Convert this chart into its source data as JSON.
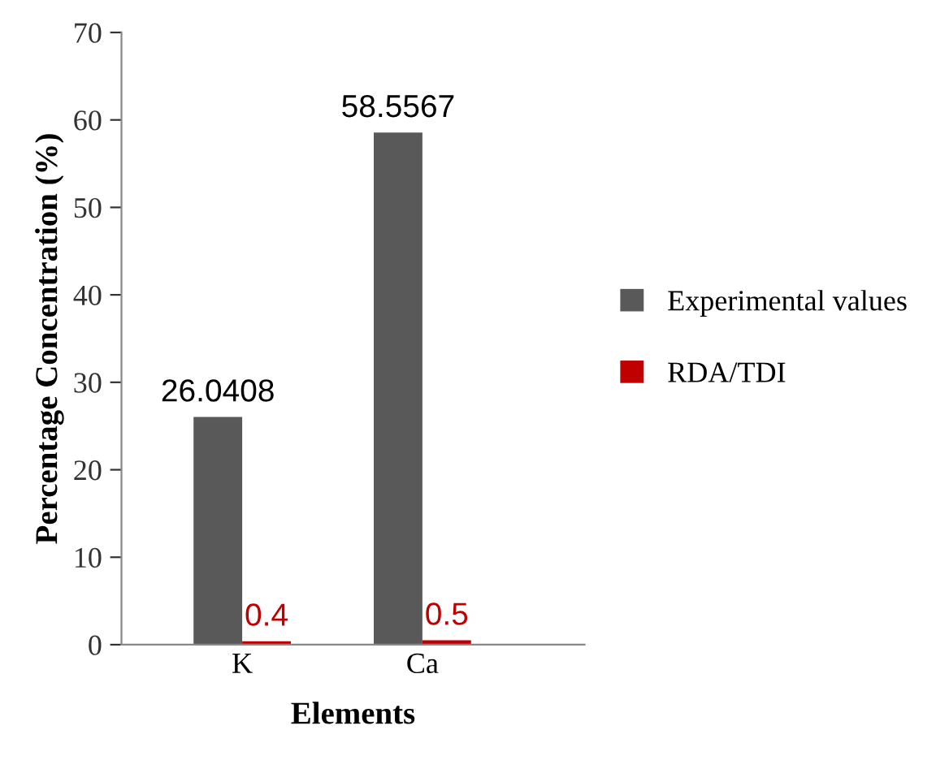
{
  "chart_data": {
    "type": "bar",
    "xlabel": "Elements",
    "ylabel": "Percentage Concentration (%)",
    "categories": [
      "K",
      "Ca"
    ],
    "series": [
      {
        "name": "Experimental values",
        "color": "#595959",
        "values": [
          26.0408,
          58.5567
        ]
      },
      {
        "name": "RDA/TDI",
        "color": "#c00000",
        "values": [
          0.4,
          0.5
        ]
      }
    ],
    "ylim": [
      0,
      70
    ],
    "yticks": [
      0,
      10,
      20,
      30,
      40,
      50,
      60,
      70
    ],
    "grid": false,
    "legend": "right",
    "data_labels": true
  }
}
